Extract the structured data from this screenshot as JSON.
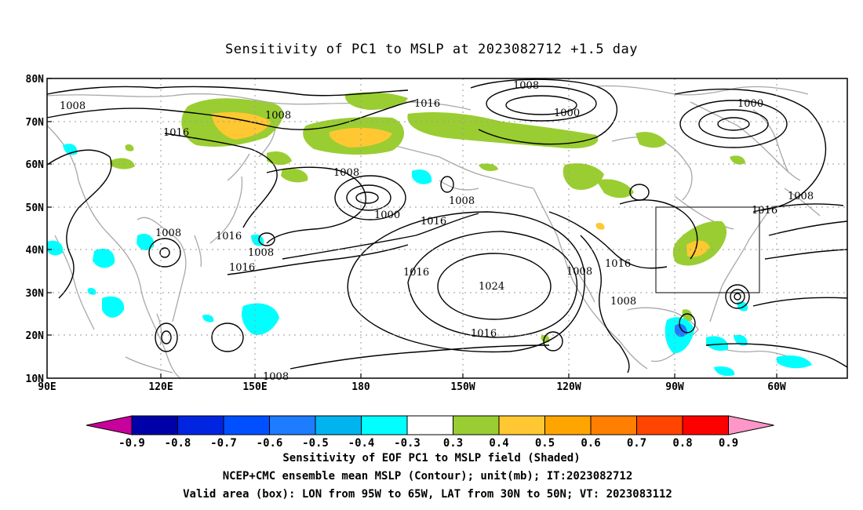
{
  "title": "Sensitivity of PC1 to MSLP at 2023082712 +1.5 day",
  "lat_ticks": [
    "80N",
    "70N",
    "60N",
    "50N",
    "40N",
    "30N",
    "20N",
    "10N"
  ],
  "lon_ticks": [
    "90E",
    "120E",
    "150E",
    "180",
    "150W",
    "120W",
    "90W",
    "60W"
  ],
  "contour_labels": [
    {
      "text": "1008"
    },
    {
      "text": "1008"
    },
    {
      "text": "1016"
    },
    {
      "text": "1008"
    },
    {
      "text": "1016"
    },
    {
      "text": "1000"
    },
    {
      "text": "1008"
    },
    {
      "text": "1000"
    },
    {
      "text": "1008"
    },
    {
      "text": "1000"
    },
    {
      "text": "1008"
    },
    {
      "text": "1016"
    },
    {
      "text": "1016"
    },
    {
      "text": "1016"
    },
    {
      "text": "1008"
    },
    {
      "text": "1016"
    },
    {
      "text": "1008"
    },
    {
      "text": "1016"
    },
    {
      "text": "1024"
    },
    {
      "text": "1008"
    },
    {
      "text": "1016"
    },
    {
      "text": "1008"
    },
    {
      "text": "1016"
    },
    {
      "text": "1016"
    },
    {
      "text": "1008"
    }
  ],
  "colorbar": {
    "labels": [
      "-0.9",
      "-0.8",
      "-0.7",
      "-0.6",
      "-0.5",
      "-0.4",
      "-0.3",
      "0.3",
      "0.4",
      "0.5",
      "0.6",
      "0.7",
      "0.8",
      "0.9"
    ],
    "colors": [
      "#0000a8",
      "#0024e0",
      "#0050ff",
      "#1e7cff",
      "#00b4f0",
      "#00ffff",
      "#ffffff",
      "#9acd32",
      "#ffc832",
      "#ffa500",
      "#ff7f00",
      "#ff4500",
      "#ff0000"
    ],
    "low_end_color": "#c8009c",
    "high_end_color": "#ff96c8"
  },
  "captions": [
    "Sensitivity of EOF PC1 to MSLP field (Shaded)",
    "NCEP+CMC ensemble mean MSLP (Contour); unit(mb); IT:2023082712",
    "Valid area (box): LON from 95W to 65W, LAT from 30N to 50N; VT: 2023083112"
  ]
}
